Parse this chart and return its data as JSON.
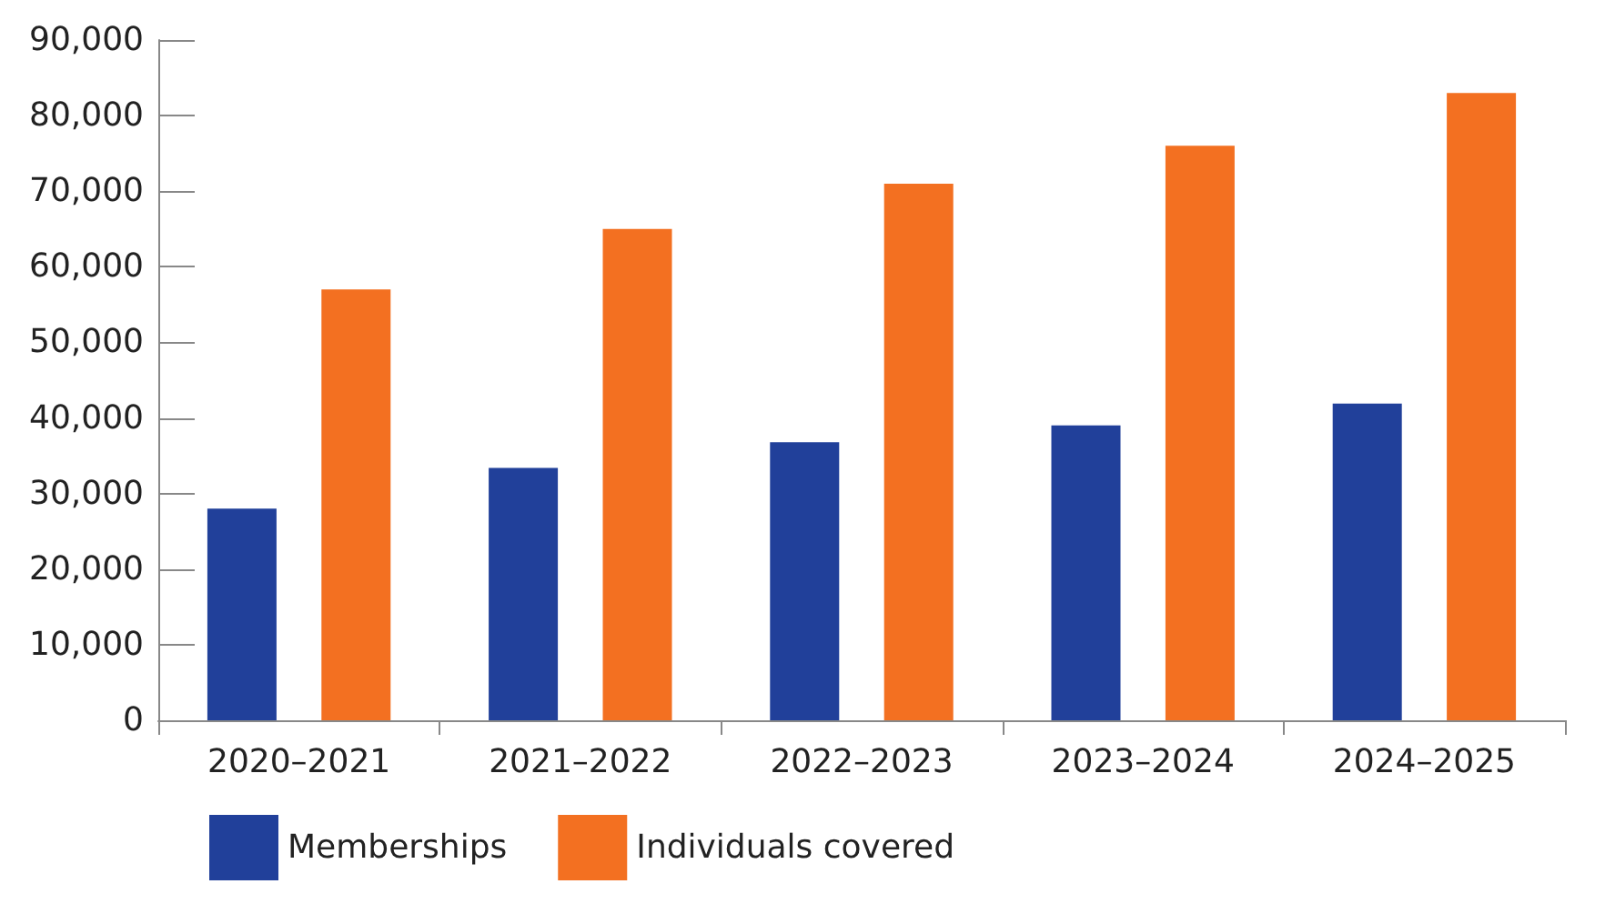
{
  "chart_data": {
    "type": "bar",
    "categories": [
      "2020–2021",
      "2021–2022",
      "2022–2023",
      "2023–2024",
      "2024–2025"
    ],
    "series": [
      {
        "name": "Memberships",
        "color": "#21409a",
        "values": [
          28000,
          33400,
          36800,
          39000,
          41900
        ]
      },
      {
        "name": "Individuals covered",
        "color": "#f37021",
        "values": [
          57000,
          65000,
          71000,
          76000,
          83000
        ]
      }
    ],
    "ylim": [
      0,
      90000
    ],
    "yticks": [
      0,
      {
        "value": 10000,
        "label": "10,000"
      },
      {
        "value": 20000,
        "label": "20,000"
      },
      {
        "value": 30000,
        "label": "30,000"
      },
      {
        "value": 40000,
        "label": "40,000"
      },
      {
        "value": 50000,
        "label": "50,000"
      },
      {
        "value": 60000,
        "label": "60,000"
      },
      {
        "value": 70000,
        "label": "70,000"
      },
      {
        "value": 80000,
        "label": "80,000"
      },
      {
        "value": 90000,
        "label": "90,000"
      }
    ],
    "grid": false,
    "legend": "bottom left"
  }
}
